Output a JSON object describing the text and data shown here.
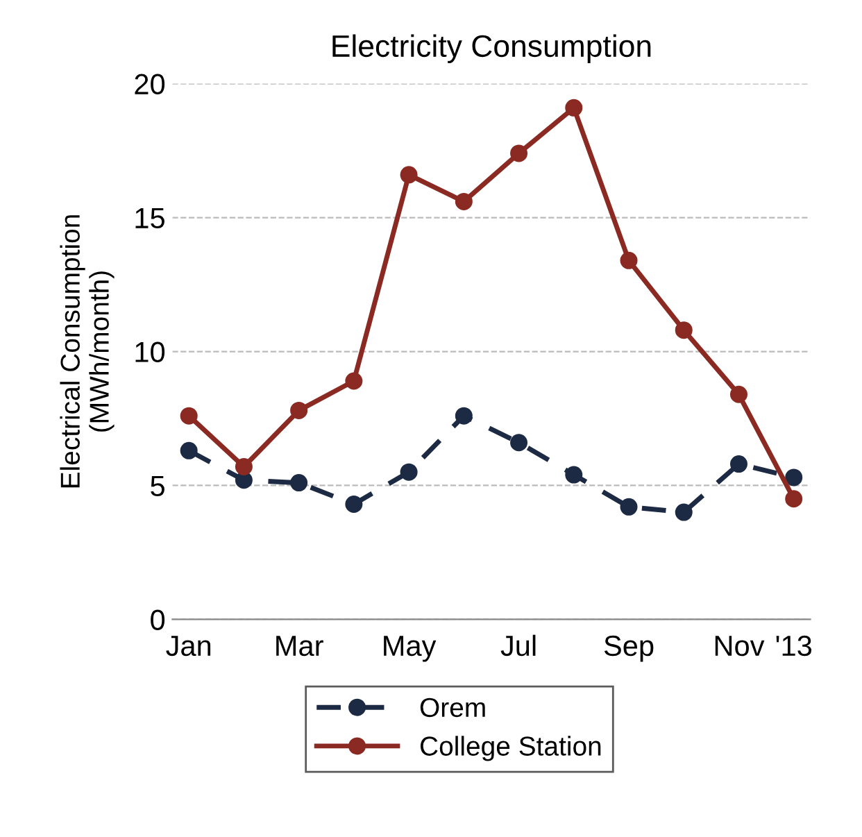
{
  "chart_data": {
    "type": "line",
    "title": "Electricity Consumption",
    "ylabel": "Electrical Consumption\n(MWh/month)",
    "categories": [
      "Jan",
      null,
      "Mar",
      null,
      "May",
      null,
      "Jul",
      null,
      "Sep",
      null,
      "Nov",
      "'13"
    ],
    "series": [
      {
        "name": "Orem",
        "color": "#1c2a44",
        "line_style": "dashed",
        "values": [
          6.3,
          5.2,
          5.1,
          4.3,
          5.5,
          7.6,
          6.6,
          5.4,
          4.2,
          4.0,
          5.8,
          5.3
        ]
      },
      {
        "name": "College Station",
        "color": "#8b2a22",
        "line_style": "solid",
        "values": [
          7.6,
          5.7,
          7.8,
          8.9,
          16.6,
          15.6,
          17.4,
          19.1,
          13.4,
          10.8,
          8.4,
          4.5
        ]
      }
    ],
    "ylim": [
      0,
      20
    ],
    "yticks": [
      0,
      5,
      10,
      15,
      20
    ],
    "grid": "y",
    "legend": "bottom",
    "marker": "circle"
  }
}
